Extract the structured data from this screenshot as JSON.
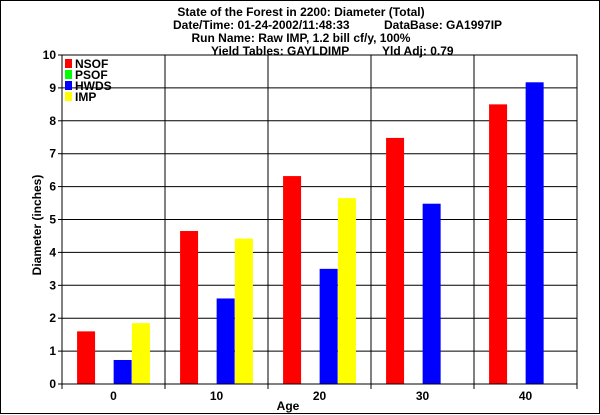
{
  "header": {
    "line1": "State of the Forest in 2200: Diameter (Total)",
    "line2a": "Date/Time: 01-24-2002/11:48:33",
    "line2b": "DataBase: GA1997IP",
    "line3": "Run Name: Raw IMP, 1.2 bill cf/y, 100%",
    "line4a": "Yield Tables: GAYLDIMP",
    "line4b": "Yld Adj: 0.79"
  },
  "chart_data": {
    "type": "bar",
    "title": "State of the Forest in 2200: Diameter (Total)",
    "xlabel": "Age",
    "ylabel": "Diameter (inches)",
    "categories": [
      "0",
      "10",
      "20",
      "30",
      "40"
    ],
    "ylim": [
      0,
      10
    ],
    "yticks": [
      "0",
      "1",
      "2",
      "3",
      "4",
      "5",
      "6",
      "7",
      "8",
      "9",
      "10"
    ],
    "grid": true,
    "legend": "top-left",
    "series": [
      {
        "name": "NSOF",
        "color": "#ff0000",
        "values": [
          1.6,
          4.65,
          6.32,
          7.48,
          8.5
        ]
      },
      {
        "name": "PSOF",
        "color": "#00ff00",
        "values": [
          null,
          null,
          null,
          null,
          null
        ]
      },
      {
        "name": "HWDS",
        "color": "#0000ff",
        "values": [
          0.73,
          2.6,
          3.5,
          5.48,
          9.17
        ]
      },
      {
        "name": "IMP",
        "color": "#ffff00",
        "values": [
          1.85,
          4.42,
          5.65,
          null,
          null
        ]
      }
    ]
  }
}
